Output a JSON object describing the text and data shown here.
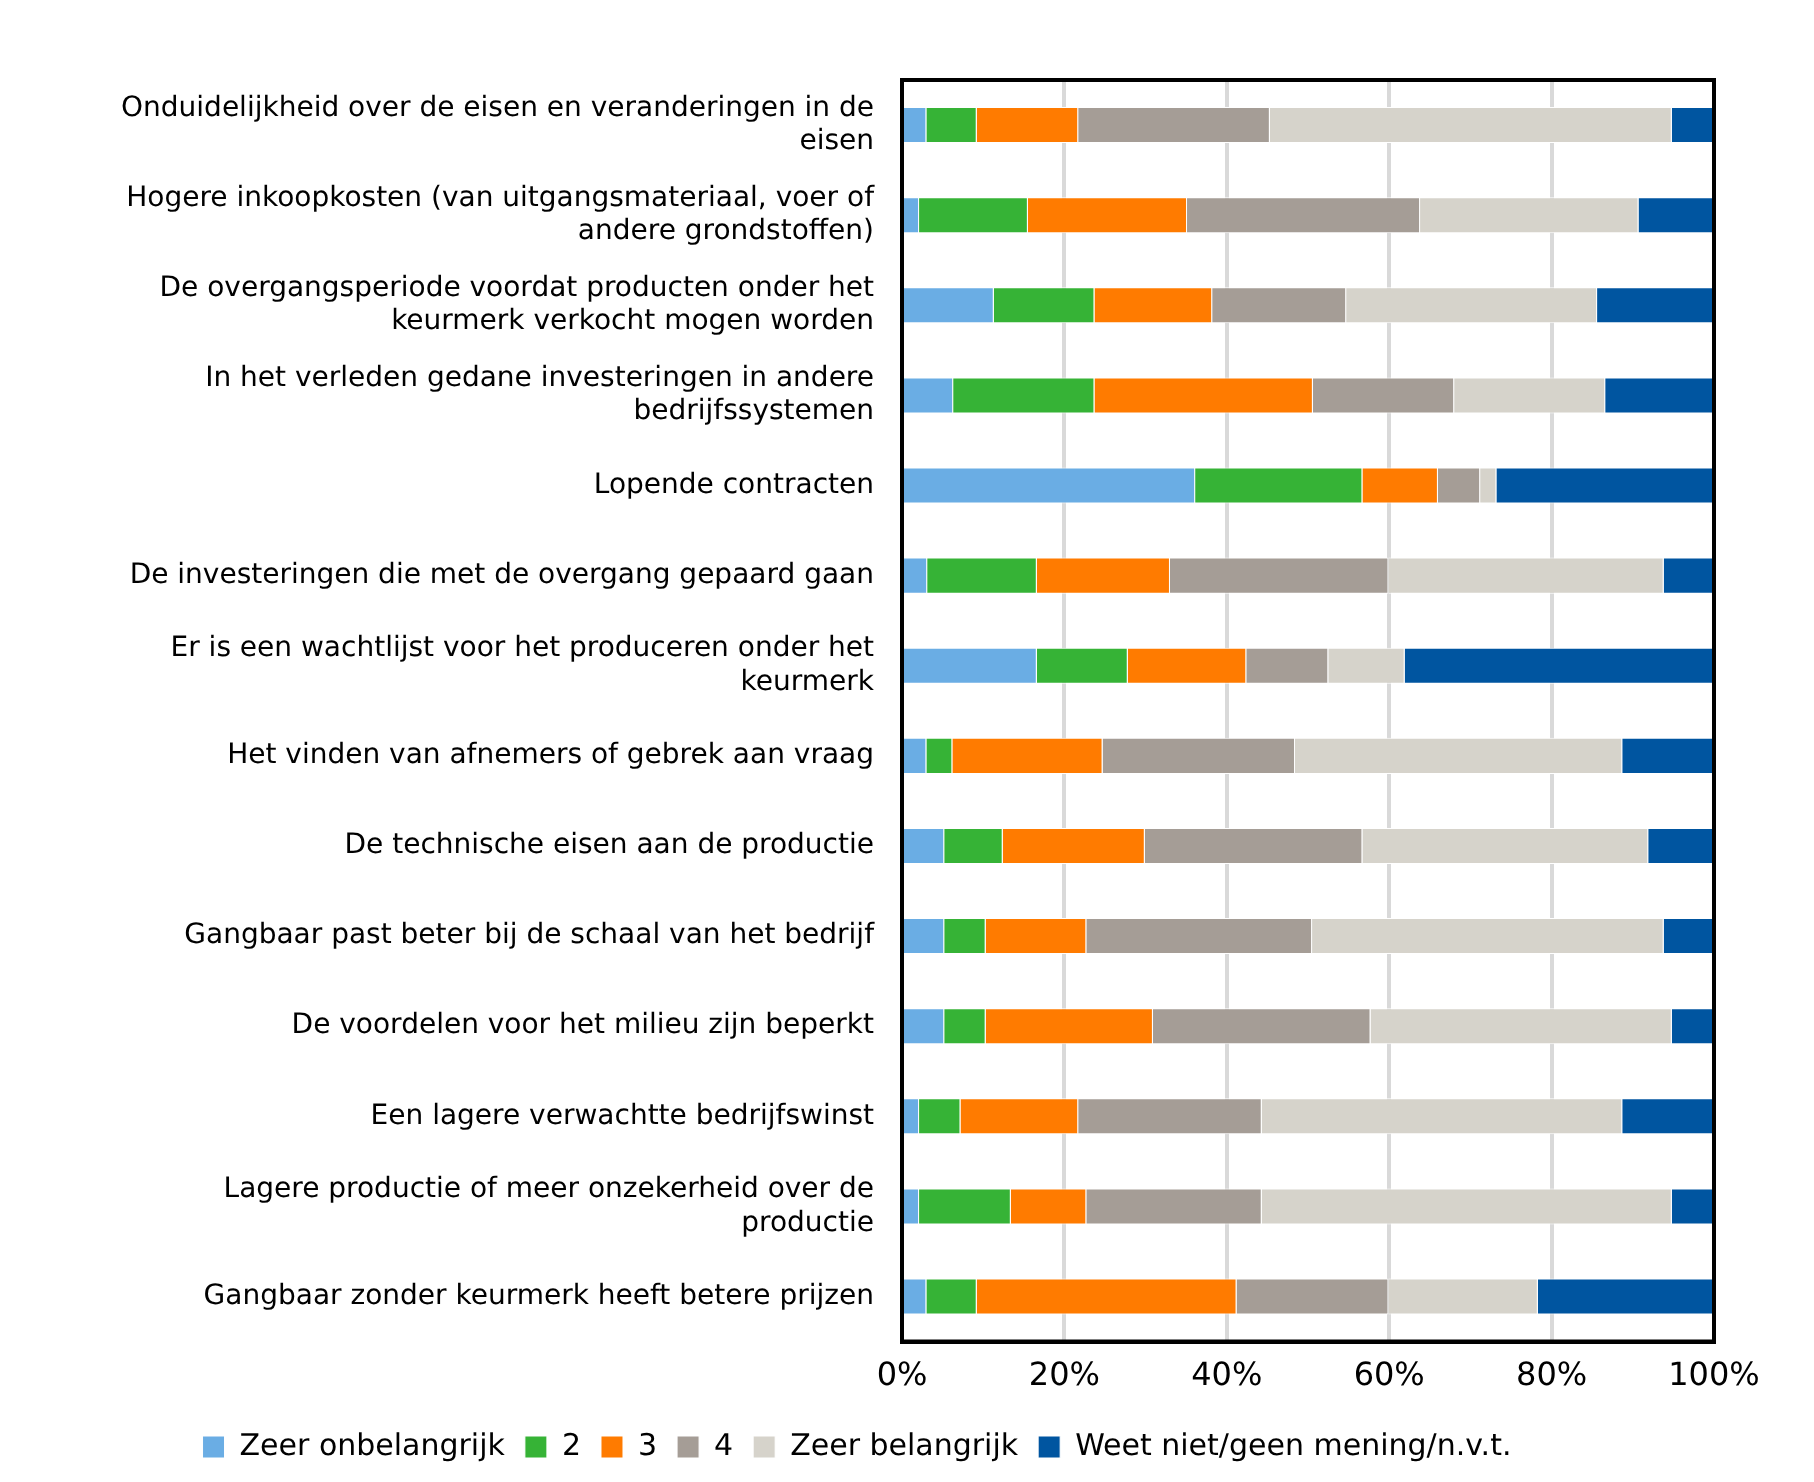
{
  "chart_data": {
    "type": "bar",
    "orientation": "horizontal",
    "stacked": true,
    "categories": [
      "Onduidelijkheid over de eisen en veranderingen in de eisen",
      "Hogere inkoopkosten (van uitgangsmateriaal, voer of andere grondstoffen)",
      "De overgangsperiode voordat producten onder het keurmerk verkocht mogen worden",
      "In het verleden gedane investeringen in andere bedrijfssystemen",
      "Lopende contracten",
      "De investeringen die met de overgang gepaard gaan",
      "Er is een wachtlijst voor het produceren onder het keurmerk",
      "Het vinden van afnemers of gebrek aan vraag",
      "De technische eisen aan de productie",
      "Gangbaar past beter bij de schaal van het bedrijf",
      "De voordelen voor het milieu zijn beperkt",
      "Een lagere verwachtte bedrijfswinst",
      "Lagere productie of meer onzekerheid over de productie",
      "Gangbaar zonder keurmerk heeft betere prijzen"
    ],
    "series": [
      {
        "name": "Zeer onbelangrijk",
        "color": "#6aade4",
        "values": [
          3.0,
          2.1,
          11.3,
          6.3,
          36.1,
          3.1,
          16.6,
          3.0,
          5.2,
          5.2,
          5.2,
          2.1,
          2.1,
          3.0
        ]
      },
      {
        "name": "2",
        "color": "#36b336",
        "values": [
          6.2,
          13.4,
          12.4,
          17.4,
          20.6,
          13.5,
          11.2,
          3.2,
          7.2,
          5.1,
          5.1,
          5.1,
          11.3,
          6.2
        ]
      },
      {
        "name": "3",
        "color": "#ff7b00",
        "values": [
          12.5,
          19.6,
          14.5,
          26.9,
          9.3,
          16.4,
          14.6,
          18.5,
          17.5,
          12.4,
          20.6,
          14.5,
          9.3,
          32.0
        ]
      },
      {
        "name": "4",
        "color": "#a59d96",
        "values": [
          23.6,
          28.7,
          16.5,
          17.4,
          5.2,
          26.9,
          10.1,
          23.7,
          26.8,
          27.8,
          26.8,
          22.6,
          21.6,
          18.7
        ]
      },
      {
        "name": "Zeer belangrijk",
        "color": "#d6d3cb",
        "values": [
          49.5,
          26.9,
          30.9,
          18.6,
          2.0,
          33.9,
          9.4,
          40.3,
          35.2,
          43.3,
          37.1,
          44.4,
          50.5,
          18.4
        ]
      },
      {
        "name": "Weet niet/geen mening/n.v.t.",
        "color": "#0055a0",
        "values": [
          5.2,
          9.3,
          14.4,
          13.4,
          26.8,
          6.2,
          38.1,
          11.3,
          8.1,
          6.2,
          5.2,
          11.3,
          5.2,
          21.7
        ]
      }
    ],
    "xlim": [
      0,
      100
    ],
    "xticks": [
      {
        "value": 0,
        "label": "0%"
      },
      {
        "value": 20,
        "label": "20%"
      },
      {
        "value": 40,
        "label": "40%"
      },
      {
        "value": 60,
        "label": "60%"
      },
      {
        "value": 80,
        "label": "80%"
      },
      {
        "value": 100,
        "label": "100%"
      }
    ],
    "grid": "x",
    "legend": "bottom"
  }
}
